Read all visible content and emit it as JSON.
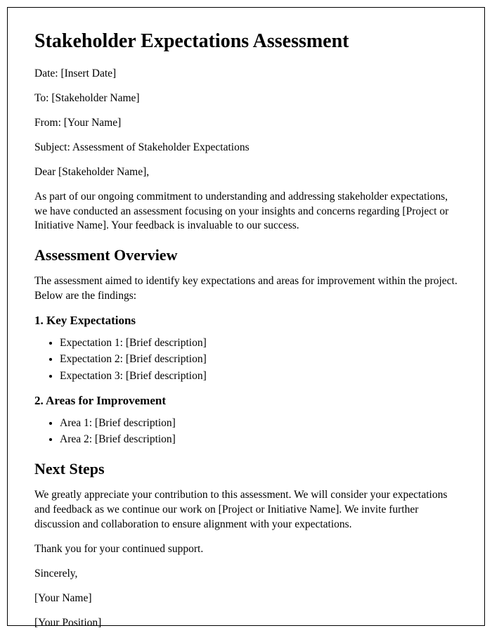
{
  "title": "Stakeholder Expectations Assessment",
  "meta": {
    "date": "Date: [Insert Date]",
    "to": "To: [Stakeholder Name]",
    "from": "From: [Your Name]",
    "subject": "Subject: Assessment of Stakeholder Expectations"
  },
  "salutation": "Dear [Stakeholder Name],",
  "intro": "As part of our ongoing commitment to understanding and addressing stakeholder expectations, we have conducted an assessment focusing on your insights and concerns regarding [Project or Initiative Name]. Your feedback is invaluable to our success.",
  "overview": {
    "heading": "Assessment Overview",
    "text": "The assessment aimed to identify key expectations and areas for improvement within the project. Below are the findings:",
    "section1": {
      "heading": "1. Key Expectations",
      "items": [
        "Expectation 1: [Brief description]",
        "Expectation 2: [Brief description]",
        "Expectation 3: [Brief description]"
      ]
    },
    "section2": {
      "heading": "2. Areas for Improvement",
      "items": [
        "Area 1: [Brief description]",
        "Area 2: [Brief description]"
      ]
    }
  },
  "nextsteps": {
    "heading": "Next Steps",
    "text": "We greatly appreciate your contribution to this assessment. We will consider your expectations and feedback as we continue our work on [Project or Initiative Name]. We invite further discussion and collaboration to ensure alignment with your expectations."
  },
  "closing": {
    "thanks": "Thank you for your continued support.",
    "signoff": "Sincerely,",
    "name": "[Your Name]",
    "position": "[Your Position]"
  }
}
